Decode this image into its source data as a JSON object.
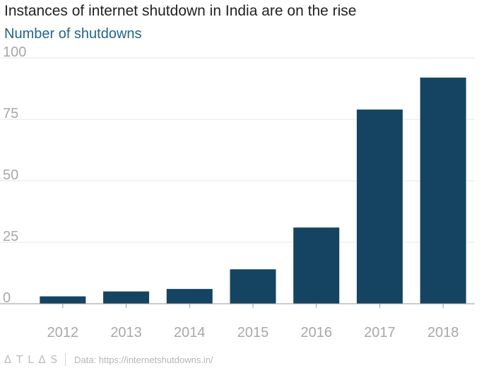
{
  "header": {
    "title": "Instances of internet shutdown in India are on the rise",
    "subtitle": "Number of shutdowns"
  },
  "footer": {
    "brand": "ATLAS",
    "brand_display": "∆TL∆S",
    "source": "Data: https://internetshutdowns.in/"
  },
  "colors": {
    "bar": "#154462",
    "gridline": "#e6e6e6",
    "baseline": "#9a9a9a",
    "tick_text": "#a8a8a8",
    "subtitle": "#23648d"
  },
  "chart_data": {
    "type": "bar",
    "categories": [
      "2012",
      "2013",
      "2014",
      "2015",
      "2016",
      "2017",
      "2018"
    ],
    "values": [
      3,
      5,
      6,
      14,
      31,
      79,
      92
    ],
    "title": "Instances of internet shutdown in India are on the rise",
    "subtitle": "Number of shutdowns",
    "xlabel": "",
    "ylabel": "",
    "ylim": [
      0,
      100
    ],
    "yticks": [
      "0",
      "25",
      "50",
      "75",
      "100"
    ],
    "grid": true,
    "legend": "none"
  }
}
